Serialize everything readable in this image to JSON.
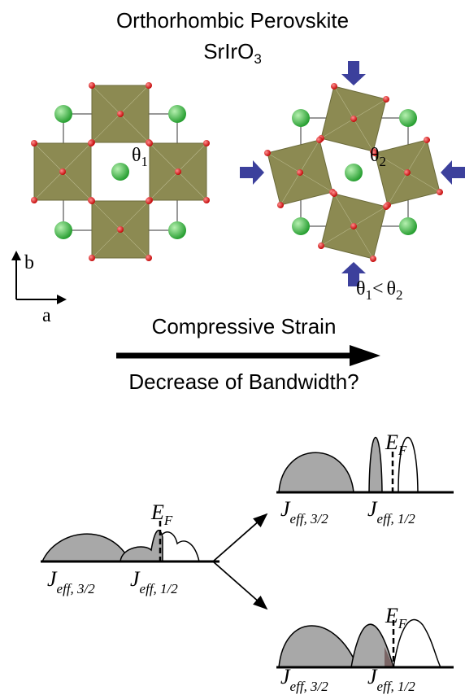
{
  "title": {
    "line1": "Orthorhombic Perovskite",
    "formula": {
      "base": "SrIrO",
      "sub": "3"
    }
  },
  "lattice_left": {
    "angle": {
      "symbol": "θ",
      "sub": "1"
    }
  },
  "lattice_right": {
    "angle": {
      "symbol": "θ",
      "sub": "2"
    }
  },
  "axes": {
    "b": "b",
    "a": "a"
  },
  "comparison": {
    "left": {
      "symbol": "θ",
      "sub": "1"
    },
    "relation": "<",
    "right": {
      "symbol": "θ",
      "sub": "2"
    }
  },
  "strain_arrow": {
    "top": "Compressive Strain",
    "bottom": "Decrease of Bandwidth?"
  },
  "dos_panels": [
    {
      "fermi": {
        "symbol": "E",
        "sub": "F"
      },
      "band_low": {
        "symbol": "J",
        "sub": "eff, 3/2"
      },
      "band_high": {
        "symbol": "J",
        "sub": "eff, 1/2"
      }
    },
    {
      "fermi": {
        "symbol": "E",
        "sub": "F"
      },
      "band_low": {
        "symbol": "J",
        "sub": "eff, 3/2"
      },
      "band_high": {
        "symbol": "J",
        "sub": "eff, 1/2"
      }
    },
    {
      "fermi": {
        "symbol": "E",
        "sub": "F"
      },
      "band_low": {
        "symbol": "J",
        "sub": "eff, 3/2"
      },
      "band_high": {
        "symbol": "J",
        "sub": "eff, 1/2"
      }
    }
  ]
}
